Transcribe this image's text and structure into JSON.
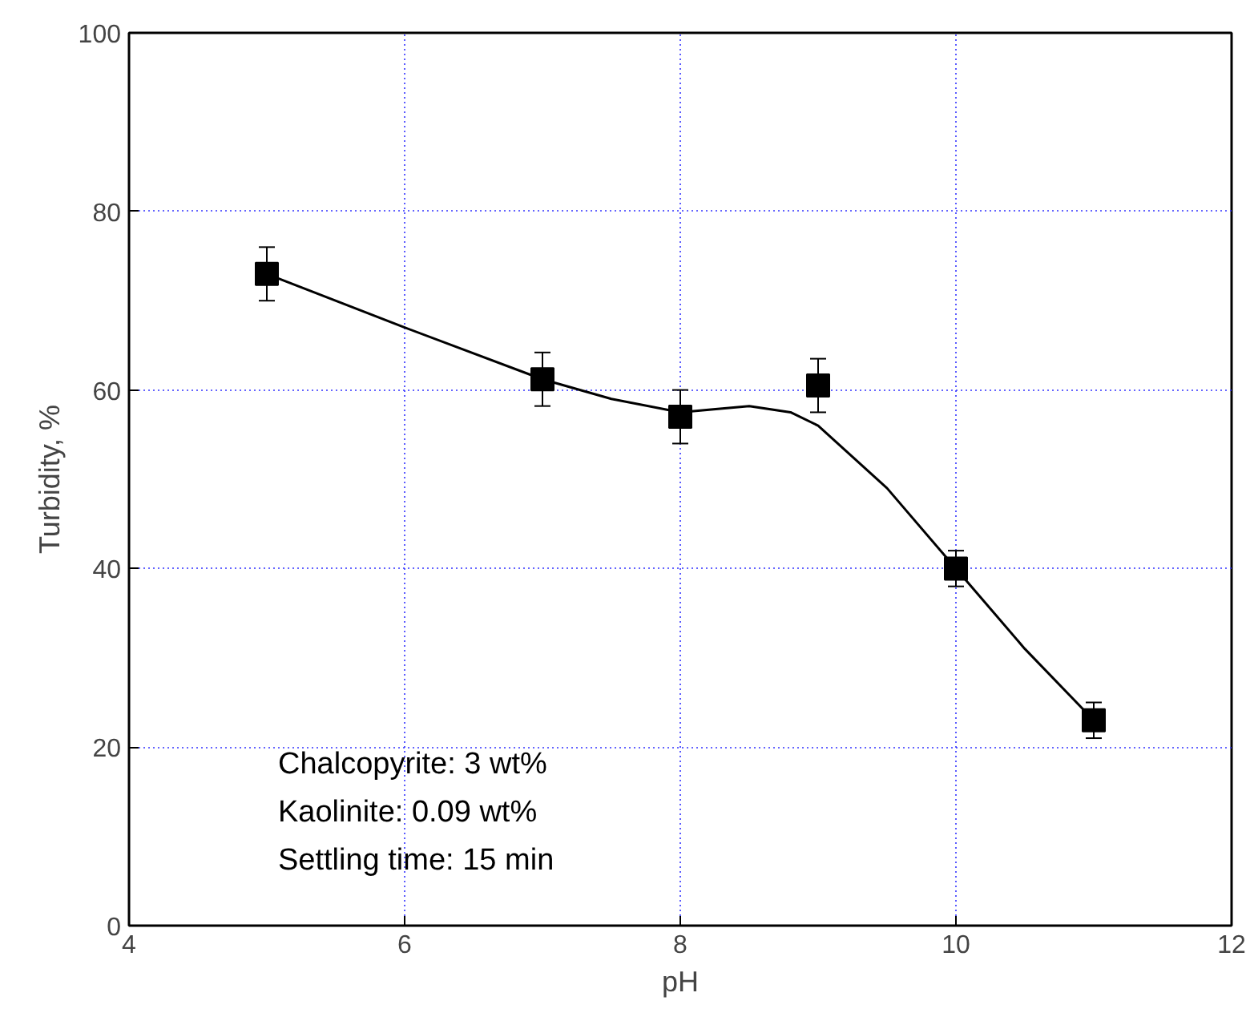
{
  "chart_data": {
    "type": "scatter",
    "xlabel": "pH",
    "ylabel": "Turbidity, %",
    "xlim": [
      4,
      12
    ],
    "ylim": [
      0,
      100
    ],
    "xticks": [
      4,
      6,
      8,
      10,
      12
    ],
    "yticks": [
      0,
      20,
      40,
      60,
      80,
      100
    ],
    "grid": true,
    "marker": "square",
    "series": [
      {
        "color": "#000000",
        "x": [
          5,
          7,
          8,
          9,
          10,
          11
        ],
        "values": [
          73,
          61.2,
          57,
          60.5,
          40,
          23
        ],
        "errors": [
          3,
          3,
          3,
          3,
          2,
          2
        ]
      },
      {
        "type": "line",
        "color": "#000000",
        "x": [
          5,
          6,
          7,
          7.5,
          8,
          8.5,
          8.8,
          9,
          9.5,
          10,
          10.5,
          11
        ],
        "values": [
          73,
          67,
          61.2,
          59,
          57.5,
          58.2,
          57.5,
          56,
          49,
          40,
          31,
          23
        ],
        "marker": "none",
        "line_style": "solid"
      }
    ],
    "annotations": [
      "Chalcopyrite: 3 wt%",
      "Kaolinite: 0.09 wt%",
      "Settling time: 15 min"
    ]
  }
}
